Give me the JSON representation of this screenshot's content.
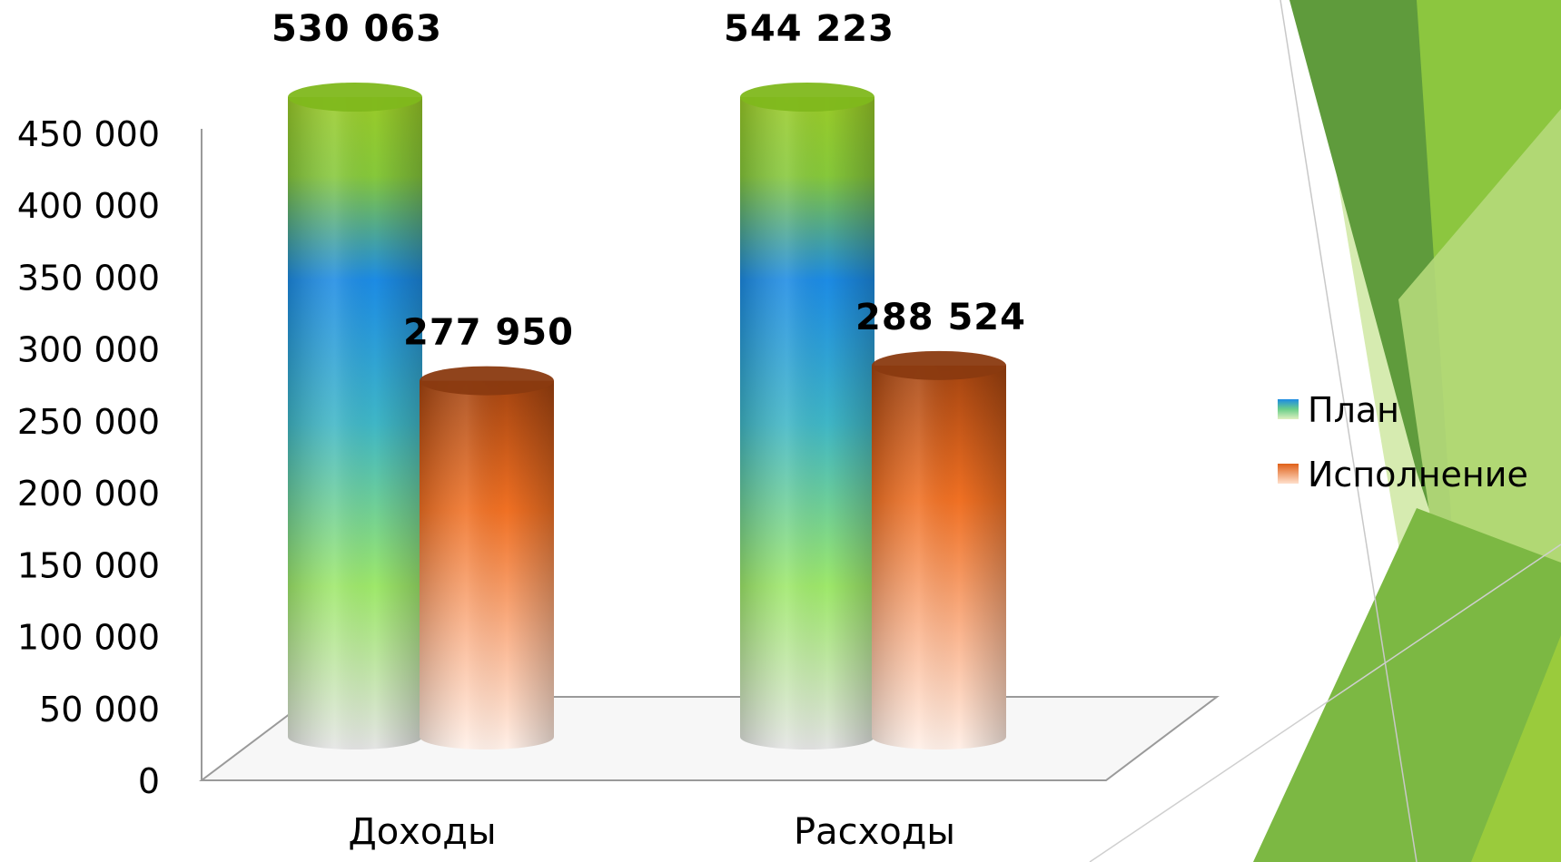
{
  "chart_data": {
    "type": "bar",
    "style": "3d-cylinder",
    "categories": [
      "Доходы",
      "Расходы"
    ],
    "series": [
      {
        "name": "План",
        "values": [
          530063,
          544223
        ],
        "value_labels": [
          "530 063",
          "544 223"
        ]
      },
      {
        "name": "Исполнение",
        "values": [
          277950,
          288524
        ],
        "value_labels": [
          "277 950",
          "288 524"
        ]
      }
    ],
    "ylim": [
      0,
      450000
    ],
    "yticks": [
      0,
      50000,
      100000,
      150000,
      200000,
      250000,
      300000,
      350000,
      400000,
      450000
    ],
    "ytick_labels": [
      "0",
      "50 000",
      "100 000",
      "150 000",
      "200 000",
      "250 000",
      "300 000",
      "350 000",
      "400 000",
      "450 000"
    ],
    "grid": false,
    "legend_position": "right"
  },
  "colors": {
    "plan_gradient": [
      "#8fc31f",
      "#1e88e5",
      "#8fe08a",
      "#e6e6e6"
    ],
    "execution_gradient": [
      "#a0400f",
      "#f07020",
      "#ffe8dc"
    ],
    "decoration_greens": [
      "#4e8d2a",
      "#8cc63f",
      "#b5d97a",
      "#d6ebb0"
    ]
  }
}
